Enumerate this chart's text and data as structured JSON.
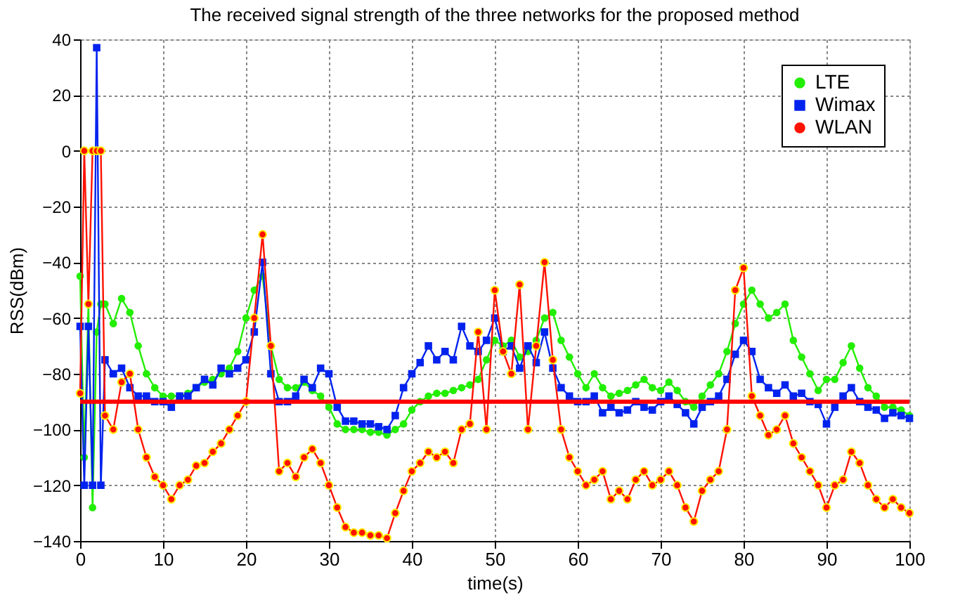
{
  "chart_data": {
    "type": "line",
    "title": "The received signal strength of the three networks  for the proposed method",
    "xlabel": "time(s)",
    "ylabel": "RSS(dBm)",
    "x": [
      0,
      0.5,
      1,
      1.5,
      2,
      2.5,
      3,
      4,
      5,
      6,
      7,
      8,
      9,
      10,
      11,
      12,
      13,
      14,
      15,
      16,
      17,
      18,
      19,
      20,
      21,
      22,
      23,
      24,
      25,
      26,
      27,
      28,
      29,
      30,
      31,
      32,
      33,
      34,
      35,
      36,
      37,
      38,
      39,
      40,
      41,
      42,
      43,
      44,
      45,
      46,
      47,
      48,
      49,
      50,
      51,
      52,
      53,
      54,
      55,
      56,
      57,
      58,
      59,
      60,
      61,
      62,
      63,
      64,
      65,
      66,
      67,
      68,
      69,
      70,
      71,
      72,
      73,
      74,
      75,
      76,
      77,
      78,
      79,
      80,
      81,
      82,
      83,
      84,
      85,
      86,
      87,
      88,
      89,
      90,
      91,
      92,
      93,
      94,
      95,
      96,
      97,
      98,
      99,
      100
    ],
    "series": [
      {
        "name": "LTE",
        "color": "#22ee00",
        "marker": "circle",
        "values": [
          -45,
          -110,
          -55,
          -128,
          -65,
          -55,
          -55,
          -62,
          -53,
          -58,
          -70,
          -80,
          -85,
          -88,
          -88,
          -88,
          -87,
          -85,
          -83,
          -82,
          -80,
          -78,
          -72,
          -60,
          -50,
          -45,
          -70,
          -82,
          -85,
          -85,
          -83,
          -86,
          -88,
          -92,
          -98,
          -100,
          -100,
          -100,
          -101,
          -101,
          -102,
          -100,
          -98,
          -93,
          -90,
          -88,
          -87,
          -87,
          -86,
          -85,
          -84,
          -82,
          -75,
          -68,
          -70,
          -68,
          -74,
          -72,
          -68,
          -60,
          -58,
          -68,
          -74,
          -80,
          -85,
          -80,
          -85,
          -88,
          -87,
          -86,
          -84,
          -82,
          -85,
          -86,
          -83,
          -86,
          -90,
          -92,
          -88,
          -84,
          -80,
          -72,
          -62,
          -55,
          -50,
          -55,
          -60,
          -58,
          -55,
          -68,
          -74,
          -80,
          -86,
          -82,
          -82,
          -76,
          -70,
          -78,
          -85,
          -88,
          -92,
          -92,
          -93,
          -95
        ]
      },
      {
        "name": "Wimax",
        "color": "#0022ee",
        "marker": "square",
        "values": [
          -63,
          -120,
          -63,
          -120,
          37,
          -120,
          -75,
          -80,
          -78,
          -85,
          -88,
          -88,
          -90,
          -90,
          -92,
          -88,
          -88,
          -85,
          -82,
          -84,
          -78,
          -80,
          -78,
          -75,
          -65,
          -40,
          -80,
          -90,
          -90,
          -88,
          -82,
          -85,
          -78,
          -80,
          -92,
          -97,
          -97,
          -98,
          -98,
          -99,
          -100,
          -95,
          -85,
          -80,
          -76,
          -70,
          -75,
          -72,
          -75,
          -63,
          -70,
          -72,
          -68,
          -60,
          -72,
          -70,
          -78,
          -70,
          -76,
          -65,
          -78,
          -85,
          -88,
          -90,
          -90,
          -88,
          -94,
          -92,
          -94,
          -93,
          -90,
          -92,
          -93,
          -90,
          -88,
          -91,
          -94,
          -98,
          -92,
          -90,
          -88,
          -82,
          -73,
          -68,
          -72,
          -82,
          -85,
          -87,
          -84,
          -88,
          -87,
          -90,
          -91,
          -98,
          -92,
          -88,
          -85,
          -90,
          -92,
          -93,
          -96,
          -94,
          -95,
          -96
        ]
      },
      {
        "name": "WLAN",
        "color": "#ff1100",
        "marker": "circle",
        "values": [
          -87,
          0,
          -55,
          0,
          0,
          0,
          -95,
          -100,
          -83,
          -80,
          -100,
          -110,
          -117,
          -120,
          -125,
          -120,
          -118,
          -113,
          -112,
          -108,
          -105,
          -100,
          -95,
          -90,
          -60,
          -30,
          -70,
          -115,
          -112,
          -117,
          -110,
          -107,
          -112,
          -120,
          -128,
          -135,
          -137,
          -137,
          -138,
          -138,
          -139,
          -130,
          -122,
          -115,
          -112,
          -108,
          -110,
          -108,
          -112,
          -100,
          -98,
          -65,
          -100,
          -50,
          -72,
          -80,
          -48,
          -100,
          -70,
          -40,
          -75,
          -100,
          -110,
          -115,
          -120,
          -118,
          -115,
          -125,
          -122,
          -125,
          -118,
          -115,
          -120,
          -118,
          -115,
          -120,
          -128,
          -133,
          -122,
          -118,
          -115,
          -100,
          -50,
          -42,
          -88,
          -95,
          -102,
          -100,
          -95,
          -105,
          -110,
          -115,
          -120,
          -128,
          -120,
          -118,
          -108,
          -112,
          -120,
          -125,
          -128,
          -125,
          -128,
          -130
        ]
      }
    ],
    "ref_lines": [
      {
        "axis": "y",
        "value": -90,
        "color": "#ff0000"
      }
    ],
    "xlim": [
      0,
      100
    ],
    "xticks": [
      0,
      10,
      20,
      30,
      40,
      50,
      60,
      70,
      80,
      90,
      100
    ],
    "ylim": [
      -140,
      40
    ],
    "yticks": [
      -140,
      -120,
      -100,
      -80,
      -60,
      -40,
      -20,
      0,
      20,
      40
    ],
    "grid": true,
    "legend": "top right",
    "line_style": "solid"
  }
}
